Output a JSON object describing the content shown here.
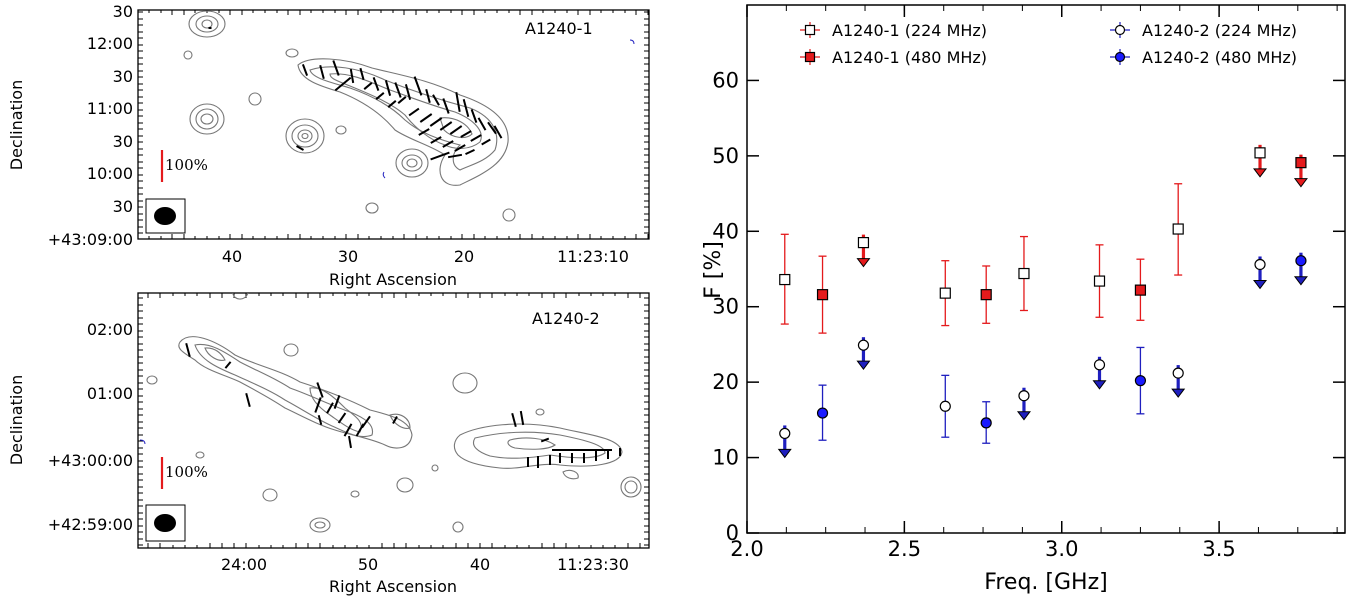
{
  "colors": {
    "contour": "#777777",
    "vector": "#000000",
    "scalebar": "#e41a1c",
    "beam": "#000000",
    "red": "#e41a1c",
    "blue": "#1f1fbf",
    "blue_marker": "#1a1aff"
  },
  "map_top": {
    "label": "A1240-1",
    "xlabel": "Right Ascension",
    "ylabel": "Declination",
    "x_ticks": [
      "40",
      "30",
      "20",
      "11:23:10"
    ],
    "y_ticks": [
      "30",
      "12:00",
      "30",
      "11:00",
      "30",
      "10:00",
      "30",
      "+43:09:00"
    ],
    "scalebar_label": "100%"
  },
  "map_bottom": {
    "label": "A1240-2",
    "xlabel": "Right Ascension",
    "ylabel": "Declination",
    "x_ticks": [
      "24:00",
      "50",
      "40",
      "11:23:30"
    ],
    "y_ticks": [
      "02:00",
      "01:00",
      "+43:00:00",
      "+42:59:00"
    ],
    "scalebar_label": "100%"
  },
  "chart_data": {
    "type": "scatter",
    "xlabel": "Freq. [GHz]",
    "ylabel": "F  [%]",
    "xlim": [
      2.0,
      3.9
    ],
    "ylim": [
      0,
      70
    ],
    "x_ticks": [
      "2.0",
      "2.5",
      "3.0",
      "3.5"
    ],
    "y_ticks": [
      "0",
      "10",
      "20",
      "30",
      "40",
      "50",
      "60"
    ],
    "legend_placement": "top",
    "series": [
      {
        "name": "A1240-1 (224 MHz)",
        "color": "#e41a1c",
        "marker": "open-square",
        "points": [
          {
            "x": 2.12,
            "y": 33.6,
            "lo": 27.7,
            "hi": 39.6
          },
          {
            "x": 2.37,
            "y": 38.5,
            "upper_limit": true
          },
          {
            "x": 2.63,
            "y": 31.8,
            "lo": 27.5,
            "hi": 36.1
          },
          {
            "x": 2.88,
            "y": 34.4,
            "lo": 29.5,
            "hi": 39.3
          },
          {
            "x": 3.12,
            "y": 33.4,
            "lo": 28.6,
            "hi": 38.2
          },
          {
            "x": 3.37,
            "y": 40.3,
            "lo": 34.2,
            "hi": 46.3
          },
          {
            "x": 3.63,
            "y": 50.4,
            "upper_limit": true
          }
        ]
      },
      {
        "name": "A1240-1 (480 MHz)",
        "color": "#e41a1c",
        "marker": "filled-square",
        "points": [
          {
            "x": 2.24,
            "y": 31.6,
            "lo": 26.5,
            "hi": 36.7
          },
          {
            "x": 2.76,
            "y": 31.6,
            "lo": 27.8,
            "hi": 35.4
          },
          {
            "x": 3.25,
            "y": 32.2,
            "lo": 28.2,
            "hi": 36.3
          },
          {
            "x": 3.76,
            "y": 49.1,
            "upper_limit": true
          }
        ]
      },
      {
        "name": "A1240-2 (224 MHz)",
        "color": "#1f1fbf",
        "marker": "open-circle",
        "points": [
          {
            "x": 2.12,
            "y": 13.2,
            "upper_limit": true
          },
          {
            "x": 2.37,
            "y": 24.9,
            "upper_limit": true
          },
          {
            "x": 2.63,
            "y": 16.8,
            "lo": 12.7,
            "hi": 20.9
          },
          {
            "x": 2.88,
            "y": 18.2,
            "upper_limit": true
          },
          {
            "x": 3.12,
            "y": 22.3,
            "upper_limit": true
          },
          {
            "x": 3.37,
            "y": 21.2,
            "upper_limit": true
          },
          {
            "x": 3.63,
            "y": 35.6,
            "upper_limit": true
          }
        ]
      },
      {
        "name": "A1240-2 (480 MHz)",
        "color": "#1f1fbf",
        "marker": "filled-circle",
        "points": [
          {
            "x": 2.24,
            "y": 15.9,
            "lo": 12.3,
            "hi": 19.6
          },
          {
            "x": 2.76,
            "y": 14.6,
            "lo": 11.9,
            "hi": 17.4
          },
          {
            "x": 3.25,
            "y": 20.2,
            "lo": 15.8,
            "hi": 24.6
          },
          {
            "x": 3.76,
            "y": 36.1,
            "upper_limit": true
          }
        ]
      }
    ]
  }
}
